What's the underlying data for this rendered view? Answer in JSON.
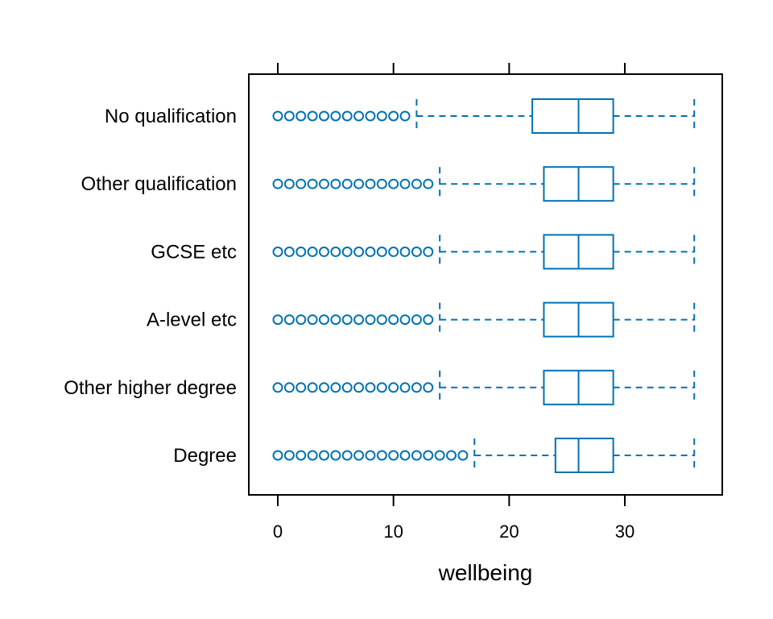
{
  "chart_data": {
    "type": "boxplot",
    "orientation": "horizontal",
    "title": "",
    "xlabel": "wellbeing",
    "ylabel": "",
    "xlim": [
      -2.5,
      38.5
    ],
    "x_ticks": [
      0,
      10,
      20,
      30
    ],
    "x_tick_labels": [
      "0",
      "10",
      "20",
      "30"
    ],
    "grid": false,
    "color": "#0072B2",
    "categories": [
      "No qualification",
      "Other qualification",
      "GCSE etc",
      "A-level etc",
      "Other higher degree",
      "Degree"
    ],
    "boxes": [
      {
        "category": "No qualification",
        "whisker_low": 12,
        "q1": 22,
        "median": 26,
        "q3": 29,
        "whisker_high": 36,
        "outliers": [
          0,
          1,
          2,
          3,
          4,
          5,
          6,
          7,
          8,
          9,
          10,
          11
        ]
      },
      {
        "category": "Other qualification",
        "whisker_low": 14,
        "q1": 23,
        "median": 26,
        "q3": 29,
        "whisker_high": 36,
        "outliers": [
          0,
          1,
          2,
          3,
          4,
          5,
          6,
          7,
          8,
          9,
          10,
          11,
          12,
          13
        ]
      },
      {
        "category": "GCSE etc",
        "whisker_low": 14,
        "q1": 23,
        "median": 26,
        "q3": 29,
        "whisker_high": 36,
        "outliers": [
          0,
          1,
          2,
          3,
          4,
          5,
          6,
          7,
          8,
          9,
          10,
          11,
          12,
          13
        ]
      },
      {
        "category": "A-level etc",
        "whisker_low": 14,
        "q1": 23,
        "median": 26,
        "q3": 29,
        "whisker_high": 36,
        "outliers": [
          0,
          1,
          2,
          3,
          4,
          5,
          6,
          7,
          8,
          9,
          10,
          11,
          12,
          13
        ]
      },
      {
        "category": "Other higher degree",
        "whisker_low": 14,
        "q1": 23,
        "median": 26,
        "q3": 29,
        "whisker_high": 36,
        "outliers": [
          0,
          1,
          2,
          3,
          4,
          5,
          6,
          7,
          8,
          9,
          10,
          11,
          12,
          13
        ]
      },
      {
        "category": "Degree",
        "whisker_low": 17,
        "q1": 24,
        "median": 26,
        "q3": 29,
        "whisker_high": 36,
        "outliers": [
          0,
          1,
          2,
          3,
          4,
          5,
          6,
          7,
          8,
          9,
          10,
          11,
          12,
          13,
          14,
          15,
          16
        ]
      }
    ]
  }
}
